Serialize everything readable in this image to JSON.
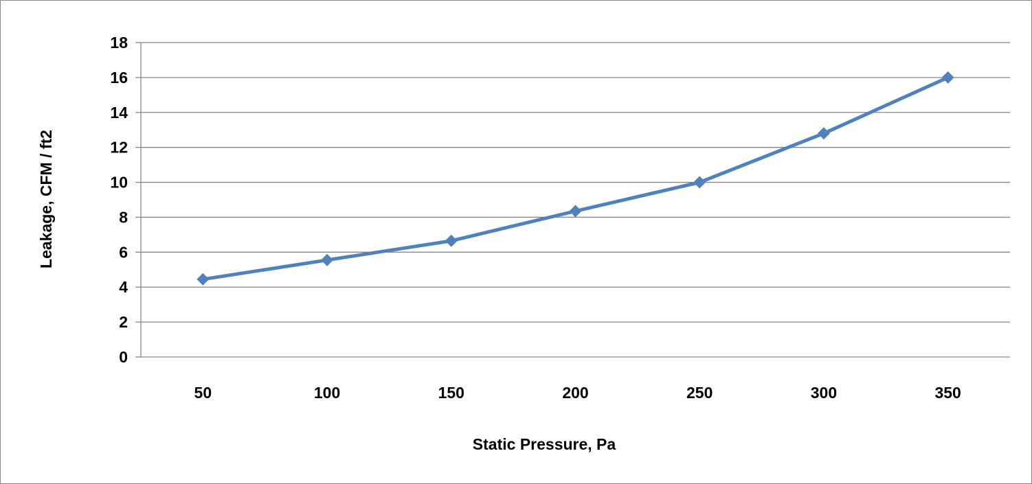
{
  "chart_data": {
    "type": "line",
    "title": "",
    "xlabel": "Static Pressure, Pa",
    "ylabel": "Leakage, CFM / ft2",
    "categories": [
      "50",
      "100",
      "150",
      "200",
      "250",
      "300",
      "350"
    ],
    "series": [
      {
        "values": [
          4.45,
          5.55,
          6.65,
          8.35,
          10.0,
          12.8,
          16.0
        ]
      }
    ],
    "ylim": [
      0,
      18
    ],
    "yticks": [
      "0",
      "2",
      "4",
      "6",
      "8",
      "10",
      "12",
      "14",
      "16",
      "18"
    ],
    "grid": true,
    "legend": "none",
    "marker": "diamond",
    "colors": {
      "series": "#4F81BD",
      "grid": "#868686",
      "axis": "#868686"
    }
  }
}
